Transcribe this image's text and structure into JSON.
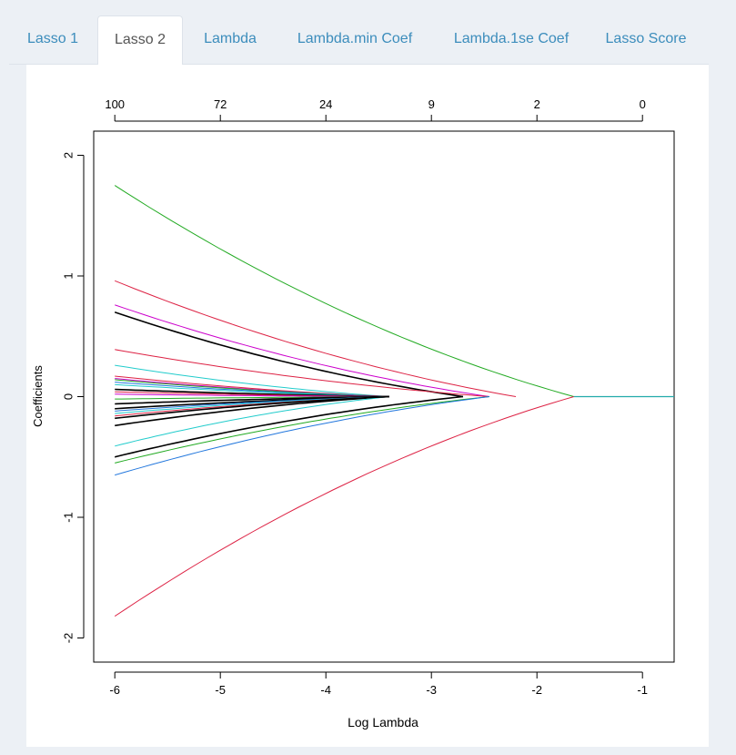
{
  "tabs": [
    {
      "label": "Lasso 1",
      "active": false
    },
    {
      "label": "Lasso 2",
      "active": true
    },
    {
      "label": "Lambda",
      "active": false
    },
    {
      "label": "Lambda.min Coef",
      "active": false
    },
    {
      "label": "Lambda.1se Coef",
      "active": false
    },
    {
      "label": "Lasso Score",
      "active": false
    }
  ],
  "chart_data": {
    "type": "line",
    "title": "",
    "xlabel": "Log Lambda",
    "ylabel": "Coefficients",
    "xlim": [
      -6.2,
      -0.7
    ],
    "ylim": [
      -2.2,
      2.2
    ],
    "x_ticks": [
      -6,
      -5,
      -4,
      -3,
      -2,
      -1
    ],
    "y_ticks": [
      -2,
      -1,
      0,
      1,
      2
    ],
    "top_axis": {
      "positions": [
        -6,
        -5,
        -4,
        -3,
        -2,
        -1
      ],
      "labels": [
        "100",
        "72",
        "24",
        "9",
        "2",
        "0"
      ]
    },
    "x_range": [
      -6.0,
      -0.7
    ],
    "series": [
      {
        "color": "#22aa22",
        "start": 1.75,
        "zero_at": -1.65
      },
      {
        "color": "#dd2244",
        "start": -1.82,
        "zero_at": -1.65
      },
      {
        "color": "#dd2244",
        "start": 0.96,
        "zero_at": -2.2
      },
      {
        "color": "#cc00cc",
        "start": 0.76,
        "zero_at": -2.45
      },
      {
        "color": "#000000",
        "start": 0.7,
        "zero_at": -2.7
      },
      {
        "color": "#dd2244",
        "start": 0.39,
        "zero_at": -2.45
      },
      {
        "color": "#22cccc",
        "start": 0.26,
        "zero_at": -3.4
      },
      {
        "color": "#000000",
        "start": -0.24,
        "zero_at": -3.4
      },
      {
        "color": "#22cccc",
        "start": -0.41,
        "zero_at": -3.4
      },
      {
        "color": "#000000",
        "start": -0.5,
        "zero_at": -2.7
      },
      {
        "color": "#22aa22",
        "start": -0.55,
        "zero_at": -2.45
      },
      {
        "color": "#2277dd",
        "start": -0.65,
        "zero_at": -2.45
      },
      {
        "color": "#dd2244",
        "start": 0.17,
        "zero_at": -3.4
      },
      {
        "color": "#cc00cc",
        "start": 0.15,
        "zero_at": -3.4
      },
      {
        "color": "#22aa22",
        "start": 0.14,
        "zero_at": -3.4
      },
      {
        "color": "#2277dd",
        "start": 0.12,
        "zero_at": -3.4
      },
      {
        "color": "#22cccc",
        "start": 0.1,
        "zero_at": -3.4
      },
      {
        "color": "#000000",
        "start": 0.06,
        "zero_at": -3.4
      },
      {
        "color": "#dd2244",
        "start": 0.04,
        "zero_at": -3.4
      },
      {
        "color": "#cc00cc",
        "start": 0.02,
        "zero_at": -3.4
      },
      {
        "color": "#22aa22",
        "start": -0.02,
        "zero_at": -3.4
      },
      {
        "color": "#000000",
        "start": -0.06,
        "zero_at": -3.4
      },
      {
        "color": "#000000",
        "start": -0.1,
        "zero_at": -3.4
      },
      {
        "color": "#2277dd",
        "start": -0.12,
        "zero_at": -3.4
      },
      {
        "color": "#22cccc",
        "start": -0.14,
        "zero_at": -3.4
      },
      {
        "color": "#dd2244",
        "start": -0.16,
        "zero_at": -3.4
      },
      {
        "color": "#000000",
        "start": -0.18,
        "zero_at": -3.4
      }
    ]
  }
}
